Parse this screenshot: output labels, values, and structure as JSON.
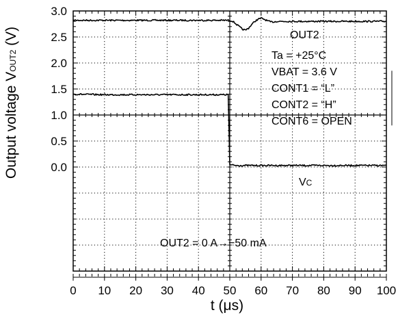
{
  "chart_data": {
    "type": "line",
    "title": "",
    "xlabel": "t (μs)",
    "ylabel": {
      "prefix": "Output voltage V",
      "subscript": "OUT2",
      "suffix": " (V)"
    },
    "xlim": [
      0,
      100
    ],
    "ylim": [
      -2.0,
      3.0
    ],
    "x_ticks": [
      0,
      10,
      20,
      30,
      40,
      50,
      60,
      70,
      80,
      90,
      100
    ],
    "y_ticks": [
      0.0,
      0.5,
      1.0,
      1.5,
      2.0,
      2.5,
      3.0
    ],
    "y_tick_labels": [
      "0.0",
      "0.5",
      "1.0",
      "1.5",
      "2.0",
      "2.5",
      "3.0"
    ],
    "grid": true,
    "series": [
      {
        "name": "OUT2",
        "x": [
          0,
          10,
          20,
          30,
          40,
          50,
          51,
          52,
          53,
          54,
          55,
          56,
          57,
          58,
          59,
          60,
          61,
          62,
          63,
          64,
          65,
          70,
          80,
          90,
          100
        ],
        "y": [
          2.82,
          2.82,
          2.82,
          2.82,
          2.82,
          2.82,
          2.8,
          2.75,
          2.7,
          2.65,
          2.63,
          2.67,
          2.74,
          2.8,
          2.84,
          2.86,
          2.84,
          2.81,
          2.79,
          2.79,
          2.8,
          2.8,
          2.8,
          2.8,
          2.8
        ]
      },
      {
        "name": "Vc",
        "x": [
          0,
          10,
          20,
          30,
          40,
          49.5,
          50,
          50.3,
          52,
          60,
          70,
          80,
          90,
          100
        ],
        "y": [
          1.4,
          1.39,
          1.39,
          1.39,
          1.39,
          1.39,
          0.05,
          0.04,
          0.03,
          0.03,
          0.03,
          0.03,
          0.03,
          0.03
        ]
      }
    ],
    "annotations": {
      "out2_label": "OUT2",
      "vc_label_main": "V",
      "vc_label_sub": "C",
      "conditions": [
        "Ta = +25°C",
        "VBAT = 3.6 V",
        "CONT1 = “L”",
        "CONT2 = “H”",
        "CONT6 = OPEN"
      ],
      "load_step": "OUT2 = 0 A→−50 mA"
    }
  }
}
